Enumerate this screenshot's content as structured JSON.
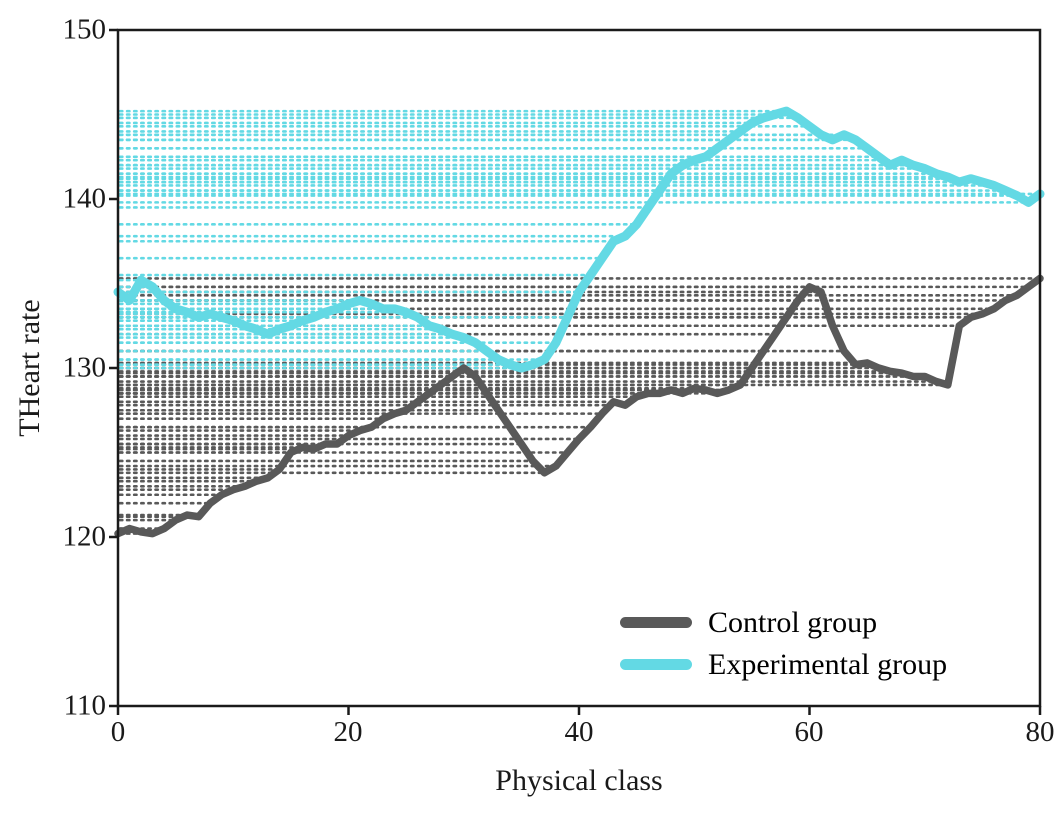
{
  "chart_data": {
    "type": "line",
    "title": "",
    "xlabel": "Physical class",
    "ylabel": "THeart rate",
    "xlim": [
      0,
      80
    ],
    "ylim": [
      110,
      150
    ],
    "xticks": [
      "0",
      "20",
      "40",
      "60",
      "80"
    ],
    "xtick_values": [
      0,
      20,
      40,
      60,
      80
    ],
    "yticks": [
      "110",
      "120",
      "130",
      "140",
      "150"
    ],
    "ytick_values": [
      110,
      120,
      130,
      140,
      150
    ],
    "grid": false,
    "legend_position": "lower right inside plot",
    "frame": "full box",
    "hatch_style": "horizontal dotted line from y-axis to each data point, same color as series",
    "x_start": 0,
    "x_step": 1,
    "series": [
      {
        "name": "Control group",
        "color": "#595959",
        "line_width": 7.5,
        "values": [
          120.2,
          120.5,
          120.3,
          120.2,
          120.5,
          121.0,
          121.3,
          121.2,
          122.0,
          122.5,
          122.8,
          123.0,
          123.3,
          123.5,
          124.0,
          125.0,
          125.3,
          125.2,
          125.5,
          125.5,
          126.0,
          126.3,
          126.5,
          127.0,
          127.3,
          127.5,
          128.0,
          128.5,
          129.0,
          129.5,
          130.0,
          129.5,
          128.5,
          127.5,
          126.5,
          125.5,
          124.5,
          123.8,
          124.2,
          125.0,
          125.8,
          126.5,
          127.3,
          128.0,
          127.8,
          128.3,
          128.5,
          128.5,
          128.7,
          128.5,
          128.8,
          128.7,
          128.5,
          128.7,
          129.0,
          130.0,
          131.0,
          132.0,
          133.0,
          134.0,
          134.8,
          134.5,
          132.5,
          131.0,
          130.2,
          130.3,
          130.0,
          129.8,
          129.7,
          129.5,
          129.5,
          129.2,
          129.0,
          132.5,
          133.0,
          133.2,
          133.5,
          134.0,
          134.3,
          134.8,
          135.3
        ]
      },
      {
        "name": "Experimental group",
        "color": "#63d9e4",
        "line_width": 9,
        "values": [
          134.5,
          134.0,
          135.2,
          134.8,
          134.0,
          133.5,
          133.3,
          133.0,
          133.2,
          133.0,
          132.8,
          132.5,
          132.3,
          132.0,
          132.3,
          132.5,
          132.8,
          133.0,
          133.3,
          133.5,
          133.8,
          134.0,
          133.8,
          133.5,
          133.5,
          133.3,
          133.0,
          132.5,
          132.3,
          132.0,
          131.8,
          131.5,
          131.0,
          130.5,
          130.2,
          130.0,
          130.2,
          130.5,
          131.5,
          133.0,
          134.5,
          135.5,
          136.5,
          137.5,
          137.8,
          138.5,
          139.5,
          140.5,
          141.5,
          142.0,
          142.3,
          142.5,
          143.0,
          143.5,
          144.0,
          144.5,
          144.8,
          145.0,
          145.2,
          144.8,
          144.3,
          143.8,
          143.5,
          143.8,
          143.5,
          143.0,
          142.5,
          142.0,
          142.3,
          142.0,
          141.8,
          141.5,
          141.3,
          141.0,
          141.2,
          141.0,
          140.8,
          140.5,
          140.2,
          139.8,
          140.3
        ]
      }
    ]
  }
}
